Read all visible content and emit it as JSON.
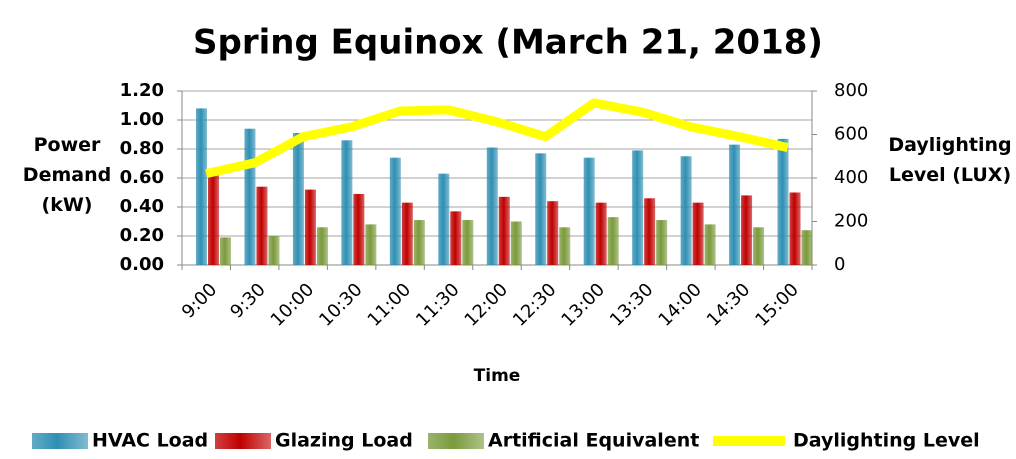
{
  "chart_data": {
    "type": "bar_line",
    "title": "Spring Equinox (March 21, 2018)",
    "x_label": "Time",
    "y_label": "Power Demand (kW)",
    "y2_label": "Daylighting Level (LUX)",
    "categories": [
      "9:00",
      "9:30",
      "10:00",
      "10:30",
      "11:00",
      "11:30",
      "12:00",
      "12:30",
      "13:00",
      "13:30",
      "14:00",
      "14:30",
      "15:00"
    ],
    "series": [
      {
        "name": "HVAC Load",
        "type": "bar",
        "color": "#2f8fb3",
        "values": [
          1.08,
          0.94,
          0.91,
          0.86,
          0.74,
          0.63,
          0.81,
          0.77,
          0.74,
          0.79,
          0.75,
          0.83,
          0.87
        ]
      },
      {
        "name": "Glazing Load",
        "type": "bar",
        "color": "#c00000",
        "values": [
          0.62,
          0.54,
          0.52,
          0.49,
          0.43,
          0.37,
          0.47,
          0.44,
          0.43,
          0.46,
          0.43,
          0.48,
          0.5
        ]
      },
      {
        "name": "Artificial Equivalent",
        "type": "bar",
        "color": "#7a9a3c",
        "values": [
          0.19,
          0.2,
          0.26,
          0.28,
          0.31,
          0.31,
          0.3,
          0.26,
          0.33,
          0.31,
          0.28,
          0.26,
          0.24
        ]
      },
      {
        "name": "Daylighting Level",
        "type": "line",
        "axis": "y2",
        "color": "#ffff00",
        "values": [
          420,
          470,
          590,
          635,
          708,
          713,
          658,
          590,
          745,
          703,
          635,
          590,
          540
        ]
      }
    ],
    "ylim": [
      0,
      1.2
    ],
    "yticks": [
      {
        "value": 0,
        "label": "0.00"
      },
      {
        "value": 0.2,
        "label": "0.20"
      },
      {
        "value": 0.4,
        "label": "0.40"
      },
      {
        "value": 0.6,
        "label": "0.60"
      },
      {
        "value": 0.8,
        "label": "0.80"
      },
      {
        "value": 1.0,
        "label": "1.00"
      },
      {
        "value": 1.2,
        "label": "1.20"
      }
    ],
    "y2lim": [
      0,
      800
    ],
    "y2ticks": [
      0,
      200,
      400,
      600,
      800
    ],
    "legend": "bottom",
    "grid": true
  }
}
